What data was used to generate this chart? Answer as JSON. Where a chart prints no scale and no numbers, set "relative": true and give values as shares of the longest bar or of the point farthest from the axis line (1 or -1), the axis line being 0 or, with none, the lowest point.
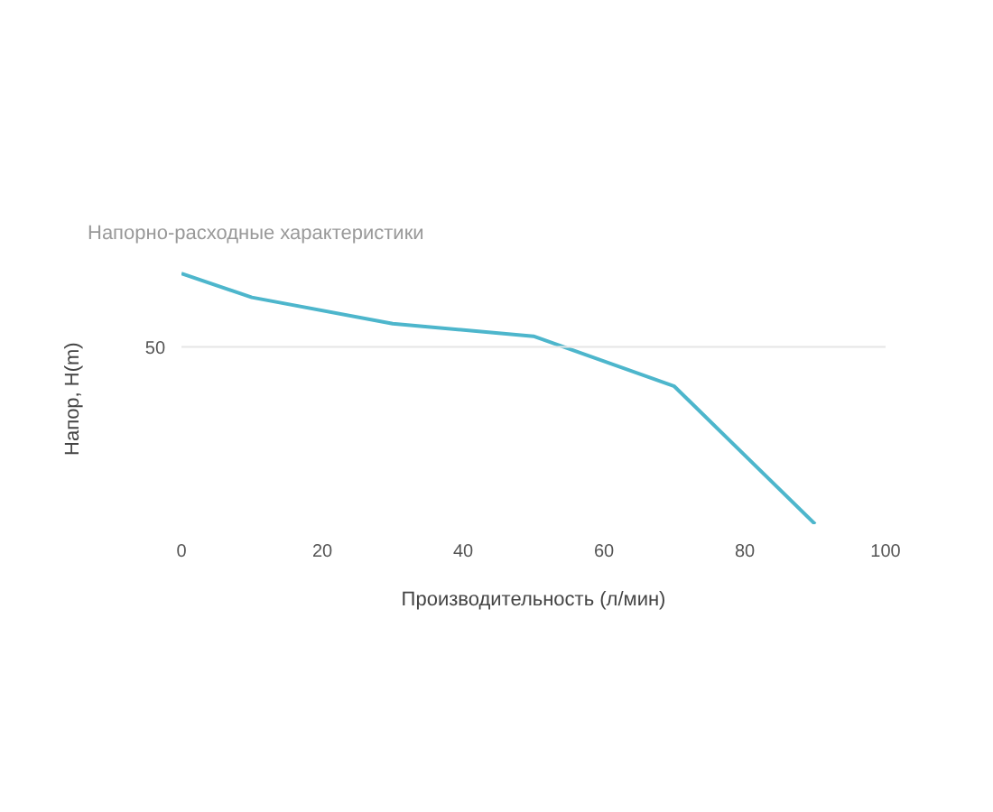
{
  "chart_data": {
    "type": "line",
    "title": "Напорно-расходные характеристики",
    "xlabel": "Производительность (л/мин)",
    "ylabel": "Напор, H(m)",
    "relative": true,
    "x": [
      0,
      10,
      30,
      50,
      70,
      90
    ],
    "series": [
      {
        "color": "#4db6cc",
        "values": [
          1.0,
          0.905,
          0.8,
          0.75,
          0.55,
          0.0
        ]
      }
    ],
    "xlim": [
      0,
      100
    ],
    "xticks": [
      0,
      20,
      40,
      60,
      80,
      100
    ],
    "ref_lines": [
      {
        "axis": "y",
        "value": 0.707,
        "color": "#e6e6e6"
      }
    ],
    "annotations": [
      {
        "text": "50",
        "x": 0,
        "y": 0.707
      }
    ],
    "marker": "none",
    "line_style": "solid"
  }
}
